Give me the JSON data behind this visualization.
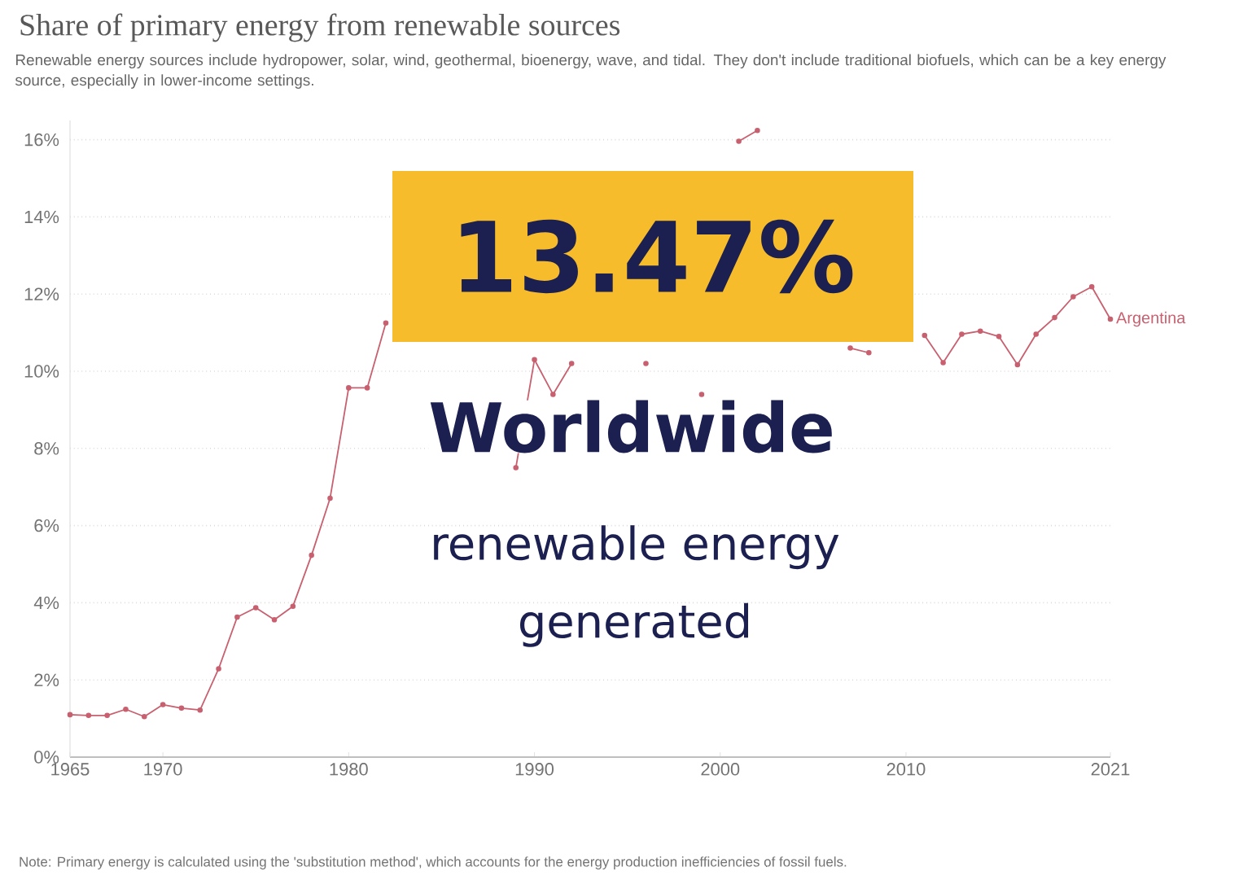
{
  "chart_data": {
    "type": "line",
    "title": "Share of primary energy from renewable sources",
    "subtitle": "Renewable energy sources include hydropower, solar, wind, geothermal, bioenergy, wave, and tidal. They don't include traditional biofuels, which can be a key energy source, especially in lower-income settings.",
    "x": [
      1965,
      1966,
      1967,
      1968,
      1969,
      1970,
      1971,
      1972,
      1973,
      1974,
      1975,
      1976,
      1977,
      1978,
      1979,
      1980,
      1981,
      1982,
      1983,
      1984,
      1985,
      1986,
      1987,
      1988,
      1989,
      1990,
      1991,
      1992,
      1993,
      1994,
      1995,
      1996,
      1997,
      1998,
      1999,
      2000,
      2001,
      2002,
      2003,
      2004,
      2005,
      2006,
      2007,
      2008,
      2009,
      2010,
      2011,
      2012,
      2013,
      2014,
      2015,
      2016,
      2017,
      2018,
      2019,
      2020,
      2021
    ],
    "series": [
      {
        "name": "Argentina",
        "color": "#c8606f",
        "values": [
          1.1,
          1.08,
          1.08,
          1.24,
          1.05,
          1.36,
          1.27,
          1.22,
          2.29,
          3.63,
          3.87,
          3.56,
          3.91,
          5.23,
          6.71,
          9.57,
          9.57,
          11.25,
          null,
          null,
          null,
          null,
          null,
          null,
          7.5,
          10.3,
          9.4,
          10.2,
          null,
          null,
          null,
          10.2,
          null,
          null,
          9.4,
          null,
          15.96,
          16.24,
          null,
          null,
          null,
          null,
          10.6,
          10.48,
          null,
          null,
          10.93,
          10.22,
          10.96,
          11.04,
          10.9,
          10.17,
          10.96,
          11.39,
          11.93,
          12.19,
          11.35
        ]
      }
    ],
    "xlim": [
      1965,
      2021
    ],
    "xticks": [
      1965,
      1970,
      1980,
      1990,
      2000,
      2010,
      2021
    ],
    "ylim": [
      0,
      16.5
    ],
    "yticks": [
      {
        "value": 0,
        "label": "0%"
      },
      {
        "value": 2,
        "label": "2%"
      },
      {
        "value": 4,
        "label": "4%"
      },
      {
        "value": 6,
        "label": "6%"
      },
      {
        "value": 8,
        "label": "8%"
      },
      {
        "value": 10,
        "label": "10%"
      },
      {
        "value": 12,
        "label": "12%"
      },
      {
        "value": 14,
        "label": "14%"
      },
      {
        "value": 16,
        "label": "16%"
      }
    ],
    "grid": "y",
    "marker": "circle",
    "line_style": "solid",
    "annotations": [
      "13.47%",
      "Worldwide",
      "renewable energy generated",
      "Note: Primary energy is calculated using the 'substitution method', which accounts for the energy production inefficiencies of fossil fuels."
    ]
  }
}
